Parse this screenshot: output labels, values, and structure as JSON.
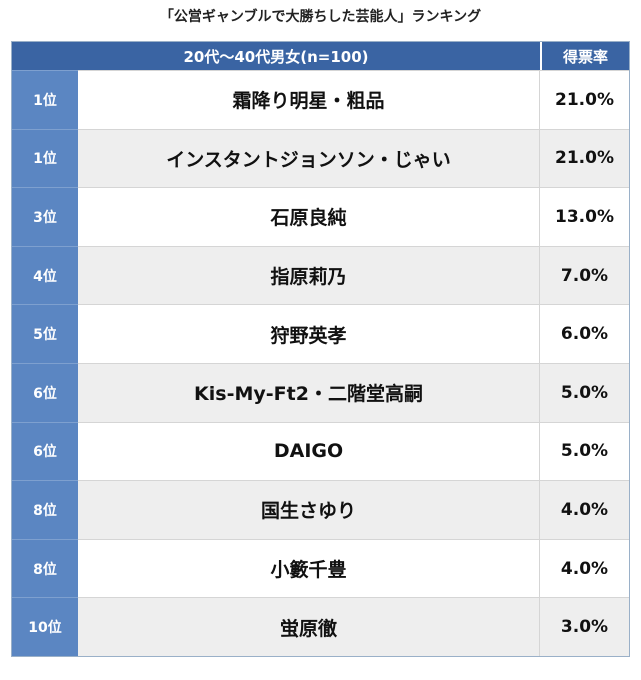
{
  "chart_data": {
    "type": "table",
    "title": "「公営ギャンブルで大勝ちした芸能人」ランキング",
    "columns": {
      "group": "20代〜40代男女(n=100)",
      "share": "得票率"
    },
    "rows": [
      {
        "rank": "1位",
        "name": "霜降り明星・粗品",
        "share_label": "21.0%",
        "share": 21.0
      },
      {
        "rank": "1位",
        "name": "インスタントジョンソン・じゃい",
        "share_label": "21.0%",
        "share": 21.0
      },
      {
        "rank": "3位",
        "name": "石原良純",
        "share_label": "13.0%",
        "share": 13.0
      },
      {
        "rank": "4位",
        "name": "指原莉乃",
        "share_label": "7.0%",
        "share": 7.0
      },
      {
        "rank": "5位",
        "name": "狩野英孝",
        "share_label": "6.0%",
        "share": 6.0
      },
      {
        "rank": "6位",
        "name": "Kis-My-Ft2・二階堂高嗣",
        "share_label": "5.0%",
        "share": 5.0
      },
      {
        "rank": "6位",
        "name": "DAIGO",
        "share_label": "5.0%",
        "share": 5.0
      },
      {
        "rank": "8位",
        "name": "国生さゆり",
        "share_label": "4.0%",
        "share": 4.0
      },
      {
        "rank": "8位",
        "name": "小籔千豊",
        "share_label": "4.0%",
        "share": 4.0
      },
      {
        "rank": "10位",
        "name": "蛍原徹",
        "share_label": "3.0%",
        "share": 3.0
      }
    ]
  },
  "colors": {
    "header_bg": "#3a64a3",
    "rank_bg": "#5b86c2",
    "row_alt_bg": "#eeeeee"
  }
}
